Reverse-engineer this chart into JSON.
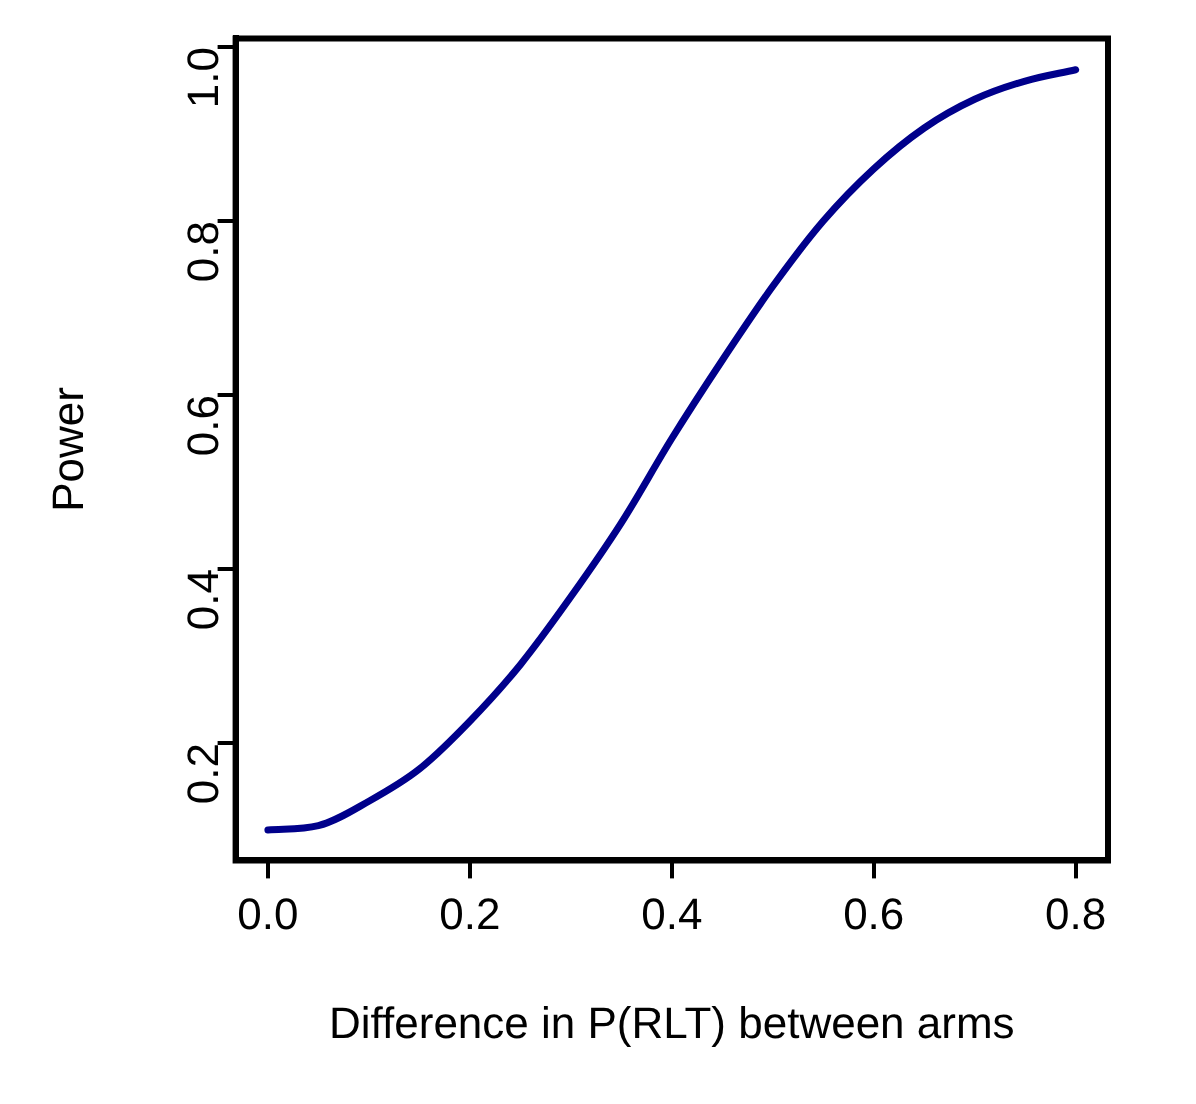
{
  "chart_data": {
    "type": "line",
    "xlabel": "Difference in P(RLT) between arms",
    "ylabel": "Power",
    "x": [
      0,
      0.05,
      0.1,
      0.15,
      0.2,
      0.25,
      0.3,
      0.35,
      0.4,
      0.45,
      0.5,
      0.55,
      0.6,
      0.65,
      0.7,
      0.75,
      0.8
    ],
    "series": [
      {
        "color": "#00008b",
        "values": [
          0.1,
          0.105,
          0.133,
          0.17,
          0.225,
          0.29,
          0.368,
          0.453,
          0.55,
          0.64,
          0.725,
          0.8,
          0.86,
          0.907,
          0.94,
          0.961,
          0.974
        ]
      }
    ],
    "xlim": [
      -0.032,
      0.832
    ],
    "ylim": [
      0.065,
      1.01
    ],
    "xticks": [
      {
        "value": 0,
        "label": "0.0"
      },
      0.2,
      0.4,
      0.6,
      0.8
    ],
    "yticks": [
      0.2,
      0.4,
      0.6,
      0.8,
      {
        "value": 1,
        "label": "1.0"
      }
    ],
    "grid": false,
    "legend": false,
    "marker": "none",
    "line_style": "solid"
  }
}
